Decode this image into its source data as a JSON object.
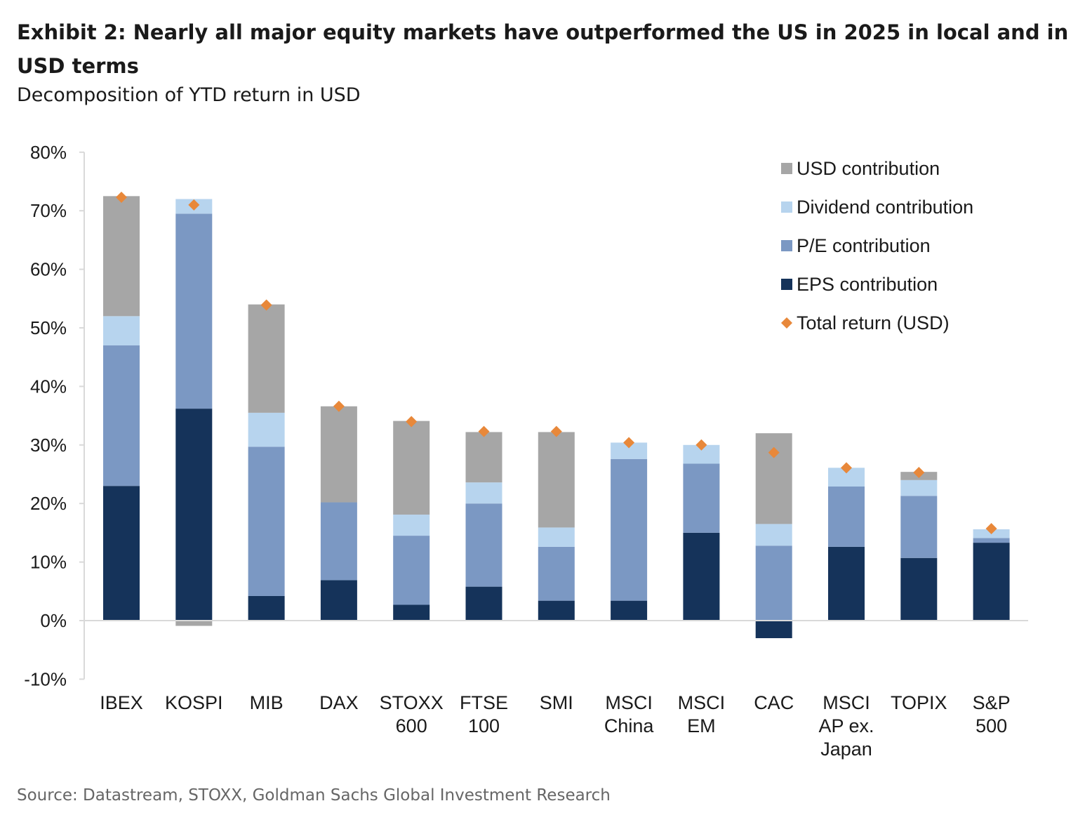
{
  "header": {
    "title": "Exhibit 2: Nearly all major equity markets have outperformed the US in 2025 in local and in USD terms",
    "subtitle": "Decomposition of YTD return in USD"
  },
  "footer": {
    "source": "Source: Datastream, STOXX, Goldman Sachs Global Investment Research"
  },
  "colors": {
    "usd": "#a6a6a6",
    "dividend": "#b7d4ee",
    "pe": "#7b98c3",
    "eps": "#15335a",
    "total": "#e8883a",
    "axis": "#d9d9d9"
  },
  "chart_data": {
    "type": "bar",
    "stacked": true,
    "title": "Decomposition of YTD return in USD",
    "xlabel": "",
    "ylabel": "",
    "ylim": [
      -10,
      80
    ],
    "yticks": [
      -10,
      0,
      10,
      20,
      30,
      40,
      50,
      60,
      70,
      80
    ],
    "ytick_labels": [
      "-10%",
      "0%",
      "10%",
      "20%",
      "30%",
      "40%",
      "50%",
      "60%",
      "70%",
      "80%"
    ],
    "grid": false,
    "legend_position": "top-right",
    "categories": [
      [
        "IBEX"
      ],
      [
        "KOSPI"
      ],
      [
        "MIB"
      ],
      [
        "DAX"
      ],
      [
        "STOXX",
        "600"
      ],
      [
        "FTSE",
        "100"
      ],
      [
        "SMI"
      ],
      [
        "MSCI",
        "China"
      ],
      [
        "MSCI",
        "EM"
      ],
      [
        "CAC"
      ],
      [
        "MSCI",
        "AP ex.",
        "Japan"
      ],
      [
        "TOPIX"
      ],
      [
        "S&P",
        "500"
      ]
    ],
    "series": [
      {
        "name": "EPS contribution",
        "key": "eps",
        "values": [
          23,
          36.2,
          4.2,
          6.9,
          2.7,
          5.8,
          3.4,
          3.4,
          15,
          -3,
          12.6,
          10.7,
          13.3
        ]
      },
      {
        "name": "P/E contribution",
        "key": "pe",
        "values": [
          24,
          33.3,
          25.5,
          13.3,
          11.8,
          14.2,
          9.2,
          24.2,
          11.8,
          12.8,
          10.3,
          10.6,
          0.8
        ]
      },
      {
        "name": "Dividend contribution",
        "key": "dividend",
        "values": [
          5,
          2.5,
          5.8,
          0,
          3.6,
          3.6,
          3.3,
          2.8,
          3.2,
          3.7,
          3.2,
          2.7,
          1.5
        ]
      },
      {
        "name": "USD contribution",
        "key": "usd",
        "values": [
          20.5,
          -0.9,
          18.5,
          16.4,
          16,
          8.6,
          16.3,
          0,
          0,
          15.5,
          0,
          1.4,
          0
        ]
      }
    ],
    "total_return": {
      "name": "Total return (USD)",
      "key": "total",
      "values": [
        72.3,
        71,
        53.9,
        36.6,
        34,
        32.3,
        32.3,
        30.4,
        30,
        28.7,
        26.1,
        25.3,
        15.7
      ]
    },
    "legend": [
      {
        "label": "USD contribution",
        "key": "usd",
        "marker": "square"
      },
      {
        "label": "Dividend contribution",
        "key": "dividend",
        "marker": "square"
      },
      {
        "label": "P/E contribution",
        "key": "pe",
        "marker": "square"
      },
      {
        "label": "EPS contribution",
        "key": "eps",
        "marker": "square"
      },
      {
        "label": "Total return (USD)",
        "key": "total",
        "marker": "diamond"
      }
    ]
  }
}
